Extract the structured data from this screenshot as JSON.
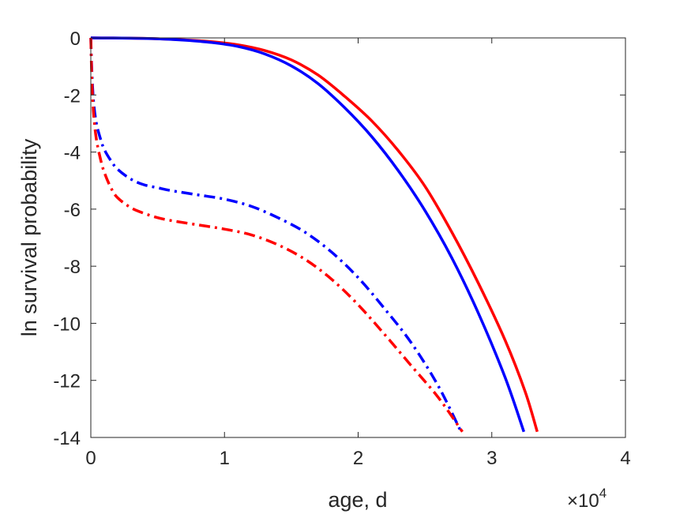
{
  "chart_data": {
    "type": "line",
    "title": "",
    "xlabel": "age, d",
    "ylabel": "ln survival probability",
    "x_exponent_label": {
      "base": "×10",
      "power": "4"
    },
    "xlim": [
      0,
      40000
    ],
    "ylim": [
      -14,
      0
    ],
    "xticks": [
      0,
      10000,
      20000,
      30000,
      40000
    ],
    "xtick_labels": [
      "0",
      "1",
      "2",
      "3",
      "4"
    ],
    "yticks": [
      0,
      -2,
      -4,
      -6,
      -8,
      -10,
      -12,
      -14
    ],
    "ytick_labels": [
      "0",
      "-2",
      "-4",
      "-6",
      "-8",
      "-10",
      "-12",
      "-14"
    ],
    "grid": false,
    "legend": "none",
    "series": [
      {
        "color": "#ff0000",
        "style": "solid",
        "x": [
          0,
          3000,
          5000,
          7000,
          9000,
          11000,
          13000,
          15000,
          17000,
          19000,
          21000,
          23000,
          25000,
          27000,
          29000,
          31000,
          32500,
          33400
        ],
        "y": [
          0,
          -0.01,
          -0.03,
          -0.07,
          -0.13,
          -0.24,
          -0.44,
          -0.77,
          -1.3,
          -2.05,
          -2.9,
          -3.95,
          -5.2,
          -6.8,
          -8.6,
          -10.6,
          -12.4,
          -13.8
        ]
      },
      {
        "color": "#0000ff",
        "style": "solid",
        "x": [
          0,
          3000,
          5000,
          7000,
          9000,
          11000,
          13000,
          15000,
          17000,
          19000,
          21000,
          23000,
          25000,
          27000,
          29000,
          31000,
          32400
        ],
        "y": [
          0,
          -0.01,
          -0.03,
          -0.08,
          -0.16,
          -0.3,
          -0.56,
          -0.98,
          -1.6,
          -2.45,
          -3.45,
          -4.65,
          -6.05,
          -7.7,
          -9.65,
          -11.9,
          -13.8
        ]
      },
      {
        "color": "#0000ff",
        "style": "dashdot",
        "x": [
          0,
          80,
          200,
          400,
          700,
          1000,
          1500,
          2000,
          3000,
          4000,
          5000,
          6000,
          8000,
          10000,
          12000,
          14000,
          16000,
          18000,
          20000,
          22000,
          24000,
          26000,
          27700
        ],
        "y": [
          0,
          -1.2,
          -2.2,
          -2.95,
          -3.5,
          -3.9,
          -4.3,
          -4.6,
          -4.95,
          -5.15,
          -5.25,
          -5.35,
          -5.5,
          -5.65,
          -5.9,
          -6.3,
          -6.8,
          -7.5,
          -8.4,
          -9.5,
          -10.7,
          -12.2,
          -13.8
        ]
      },
      {
        "color": "#ff0000",
        "style": "dashdot",
        "x": [
          0,
          80,
          200,
          400,
          700,
          1000,
          1500,
          2000,
          3000,
          4000,
          5000,
          6000,
          8000,
          10000,
          12000,
          14000,
          16000,
          18000,
          20000,
          22000,
          24000,
          26000,
          27800
        ],
        "y": [
          0,
          -1.5,
          -2.6,
          -3.5,
          -4.2,
          -4.7,
          -5.25,
          -5.6,
          -5.95,
          -6.15,
          -6.3,
          -6.4,
          -6.55,
          -6.7,
          -6.9,
          -7.25,
          -7.75,
          -8.45,
          -9.35,
          -10.4,
          -11.5,
          -12.6,
          -13.8
        ]
      }
    ]
  }
}
